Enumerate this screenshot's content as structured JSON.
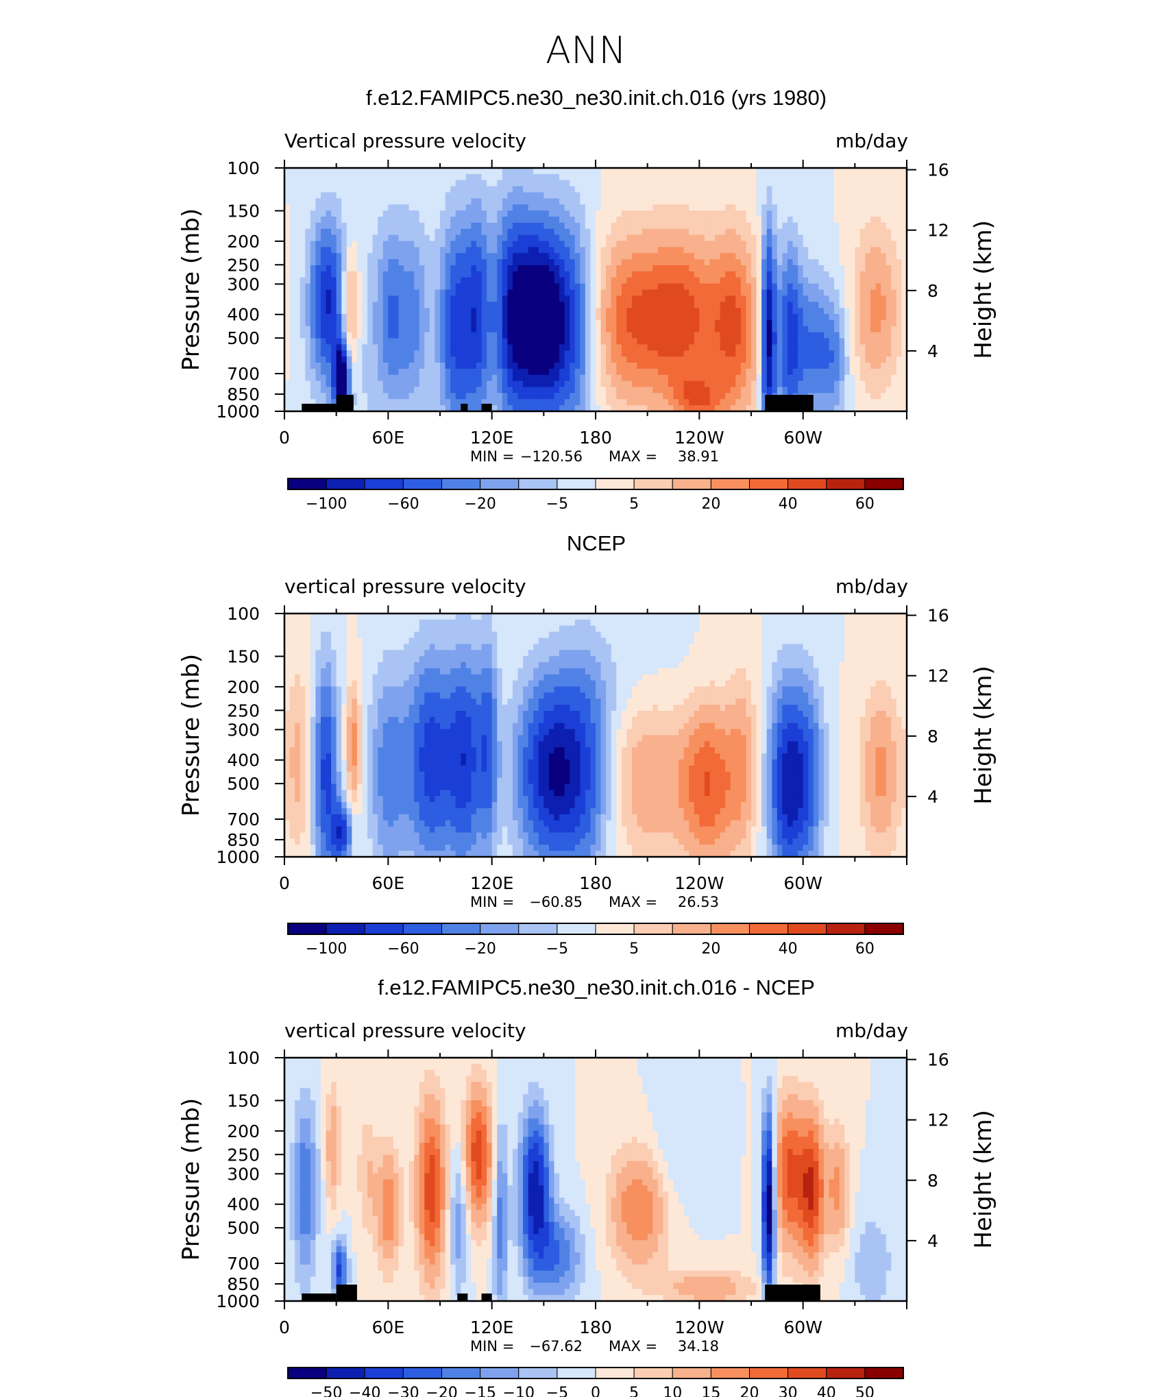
{
  "figure": {
    "title": "ANN",
    "colors": {
      "blue_dark": "#08007f",
      "blue_mid": "#2d5de0",
      "blue_light": "#a9c4f4",
      "cream": "#fde8d8",
      "orange": "#f7965c",
      "red_dark": "#8a0000",
      "land": "#000000"
    }
  },
  "chart_data": [
    {
      "type": "heatmap",
      "title": "f.e12.FAMIPC5.ne30_ne30.init.ch.016 (yrs 1980)",
      "left_label": "Vertical pressure velocity",
      "right_label": "mb/day",
      "ylabel": "Pressure (mb)",
      "y2label": "Height (km)",
      "xticks": [
        "0",
        "60E",
        "120E",
        "180",
        "120W",
        "60W"
      ],
      "yticks": [
        "100",
        "150",
        "200",
        "250",
        "300",
        "400",
        "500",
        "700",
        "850",
        "1000"
      ],
      "y2ticks": [
        "16",
        "12",
        "8",
        "4"
      ],
      "stats": {
        "min_label": "MIN =",
        "min": "−120.56",
        "max_label": "MAX =",
        "max": "38.91"
      },
      "colorbar": {
        "labels": [
          "−100",
          "−60",
          "−20",
          "−5",
          "5",
          "20",
          "40",
          "60"
        ],
        "colors": [
          "#08007f",
          "#0c1fb1",
          "#1a3ed6",
          "#2d5de0",
          "#5082e6",
          "#7ea2ee",
          "#a9c4f4",
          "#d6e6fb",
          "#fde8d8",
          "#fbcdb3",
          "#f9b08c",
          "#f7905e",
          "#f26a37",
          "#e04a1e",
          "#b82310",
          "#8a0000"
        ]
      },
      "land_mask": [
        [
          10,
          30
        ],
        [
          30,
          40
        ],
        [
          102,
          106
        ],
        [
          114,
          120
        ],
        [
          278,
          306
        ]
      ]
    },
    {
      "type": "heatmap",
      "title": "NCEP",
      "left_label": "vertical pressure velocity",
      "right_label": "mb/day",
      "ylabel": "Pressure (mb)",
      "y2label": "Height (km)",
      "xticks": [
        "0",
        "60E",
        "120E",
        "180",
        "120W",
        "60W"
      ],
      "yticks": [
        "100",
        "150",
        "200",
        "250",
        "300",
        "400",
        "500",
        "700",
        "850",
        "1000"
      ],
      "y2ticks": [
        "16",
        "12",
        "8",
        "4"
      ],
      "stats": {
        "min_label": "MIN =",
        "min": "−60.85",
        "max_label": "MAX =",
        "max": "26.53"
      },
      "colorbar": {
        "labels": [
          "−100",
          "−60",
          "−20",
          "−5",
          "5",
          "20",
          "40",
          "60"
        ],
        "colors": [
          "#08007f",
          "#0c1fb1",
          "#1a3ed6",
          "#2d5de0",
          "#5082e6",
          "#7ea2ee",
          "#a9c4f4",
          "#d6e6fb",
          "#fde8d8",
          "#fbcdb3",
          "#f9b08c",
          "#f7905e",
          "#f26a37",
          "#e04a1e",
          "#b82310",
          "#8a0000"
        ]
      },
      "land_mask": []
    },
    {
      "type": "heatmap",
      "title": "f.e12.FAMIPC5.ne30_ne30.init.ch.016 - NCEP",
      "left_label": "vertical pressure velocity",
      "right_label": "mb/day",
      "ylabel": "Pressure (mb)",
      "y2label": "Height (km)",
      "xticks": [
        "0",
        "60E",
        "120E",
        "180",
        "120W",
        "60W"
      ],
      "yticks": [
        "100",
        "150",
        "200",
        "250",
        "300",
        "400",
        "500",
        "700",
        "850",
        "1000"
      ],
      "y2ticks": [
        "16",
        "12",
        "8",
        "4"
      ],
      "stats": {
        "min_label": "MIN =",
        "min": "−67.62",
        "max_label": "MAX =",
        "max": "34.18"
      },
      "colorbar": {
        "labels": [
          "−50",
          "−40",
          "−30",
          "−20",
          "−15",
          "−10",
          "−5",
          "0",
          "5",
          "10",
          "15",
          "20",
          "30",
          "40",
          "50"
        ],
        "colors": [
          "#08007f",
          "#0c1fb1",
          "#1a3ed6",
          "#2d5de0",
          "#5082e6",
          "#7ea2ee",
          "#a9c4f4",
          "#d6e6fb",
          "#fde8d8",
          "#fbcdb3",
          "#f9b08c",
          "#f7905e",
          "#f26a37",
          "#e04a1e",
          "#b82310",
          "#8a0000"
        ]
      },
      "land_mask": [
        [
          10,
          30
        ],
        [
          30,
          42
        ],
        [
          100,
          106
        ],
        [
          114,
          120
        ],
        [
          278,
          310
        ]
      ]
    }
  ]
}
